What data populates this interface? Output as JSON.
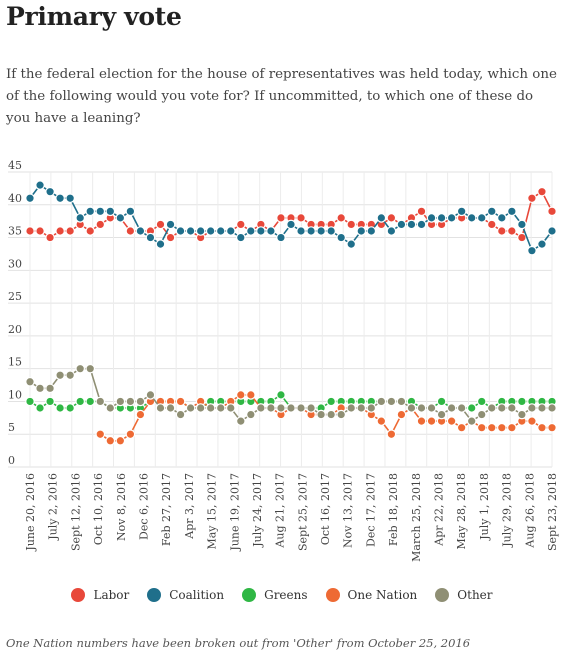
{
  "page": {
    "title": "Primary vote",
    "subtitle": "If the federal election for the house of representatives was held today, which one of the following would you vote for? If uncommitted, to which one of these do you have a leaning?",
    "footnote": "One Nation numbers have been broken out from 'Other' from October 25, 2016"
  },
  "chart_data": {
    "type": "line",
    "ylim": [
      0,
      45
    ],
    "yticks": [
      0,
      5,
      10,
      15,
      20,
      25,
      30,
      35,
      40,
      45
    ],
    "grid": true,
    "legend_position": "bottom",
    "xtick_labels": [
      "June 20, 2016",
      "July 2, 2016",
      "Sept 12, 2016",
      "Oct 10, 2016",
      "Nov 8, 2016",
      "Dec 6, 2016",
      "Feb 27, 2017",
      "Apr 3, 2017",
      "May 15, 2017",
      "June 19, 2017",
      "July 24, 2017",
      "Aug 21, 2017",
      "Sept 25, 2017",
      "Oct 16, 2017",
      "Nov 13, 2017",
      "Dec 17, 2017",
      "Feb 18, 2018",
      "March 25, 2018",
      "Apr 22, 2018",
      "May 28, 2018",
      "July 1, 2018",
      "July 29, 2018",
      "Aug 26, 2018",
      "Sept 23, 2018"
    ],
    "series": [
      {
        "name": "Labor",
        "color": "#e8483a",
        "values": [
          36,
          36,
          35,
          36,
          36,
          37,
          36,
          37,
          38,
          38,
          36,
          36,
          36,
          37,
          35,
          36,
          36,
          35,
          36,
          36,
          36,
          37,
          36,
          37,
          36,
          38,
          38,
          38,
          37,
          37,
          37,
          38,
          37,
          37,
          37,
          37,
          38,
          37,
          38,
          39,
          37,
          37,
          38,
          38,
          38,
          38,
          37,
          36,
          36,
          35,
          41,
          42,
          39
        ]
      },
      {
        "name": "Coalition",
        "color": "#1f6f8b",
        "values": [
          41,
          43,
          42,
          41,
          41,
          38,
          39,
          39,
          39,
          38,
          39,
          36,
          35,
          34,
          37,
          36,
          36,
          36,
          36,
          36,
          36,
          35,
          36,
          36,
          36,
          35,
          37,
          36,
          36,
          36,
          36,
          35,
          34,
          36,
          36,
          38,
          36,
          37,
          37,
          37,
          38,
          38,
          38,
          39,
          38,
          38,
          39,
          38,
          39,
          37,
          33,
          34,
          36
        ]
      },
      {
        "name": "Greens",
        "color": "#2fb744",
        "values": [
          10,
          9,
          10,
          9,
          9,
          10,
          10,
          10,
          9,
          9,
          9,
          9,
          10,
          10,
          10,
          10,
          9,
          9,
          10,
          10,
          10,
          10,
          10,
          10,
          10,
          11,
          9,
          9,
          9,
          9,
          10,
          10,
          10,
          10,
          10,
          10,
          10,
          10,
          10,
          9,
          9,
          10,
          9,
          9,
          9,
          10,
          9,
          10,
          10,
          10,
          10,
          10,
          10
        ]
      },
      {
        "name": "One Nation",
        "color": "#ee6a34",
        "values": [
          null,
          null,
          null,
          null,
          null,
          null,
          null,
          5,
          4,
          4,
          5,
          8,
          10,
          10,
          10,
          10,
          9,
          10,
          9,
          9,
          10,
          11,
          11,
          9,
          9,
          8,
          9,
          9,
          8,
          8,
          8,
          9,
          9,
          9,
          8,
          7,
          5,
          8,
          9,
          7,
          7,
          7,
          7,
          6,
          7,
          6,
          6,
          6,
          6,
          7,
          7,
          6,
          6
        ]
      },
      {
        "name": "Other",
        "color": "#8f8f74",
        "values": [
          13,
          12,
          12,
          14,
          14,
          15,
          15,
          10,
          9,
          10,
          10,
          10,
          11,
          9,
          9,
          8,
          9,
          9,
          9,
          9,
          9,
          7,
          8,
          9,
          9,
          9,
          9,
          9,
          9,
          8,
          8,
          8,
          9,
          9,
          9,
          10,
          10,
          10,
          9,
          9,
          9,
          8,
          9,
          9,
          7,
          8,
          9,
          9,
          9,
          8,
          9,
          9,
          9
        ]
      }
    ]
  }
}
